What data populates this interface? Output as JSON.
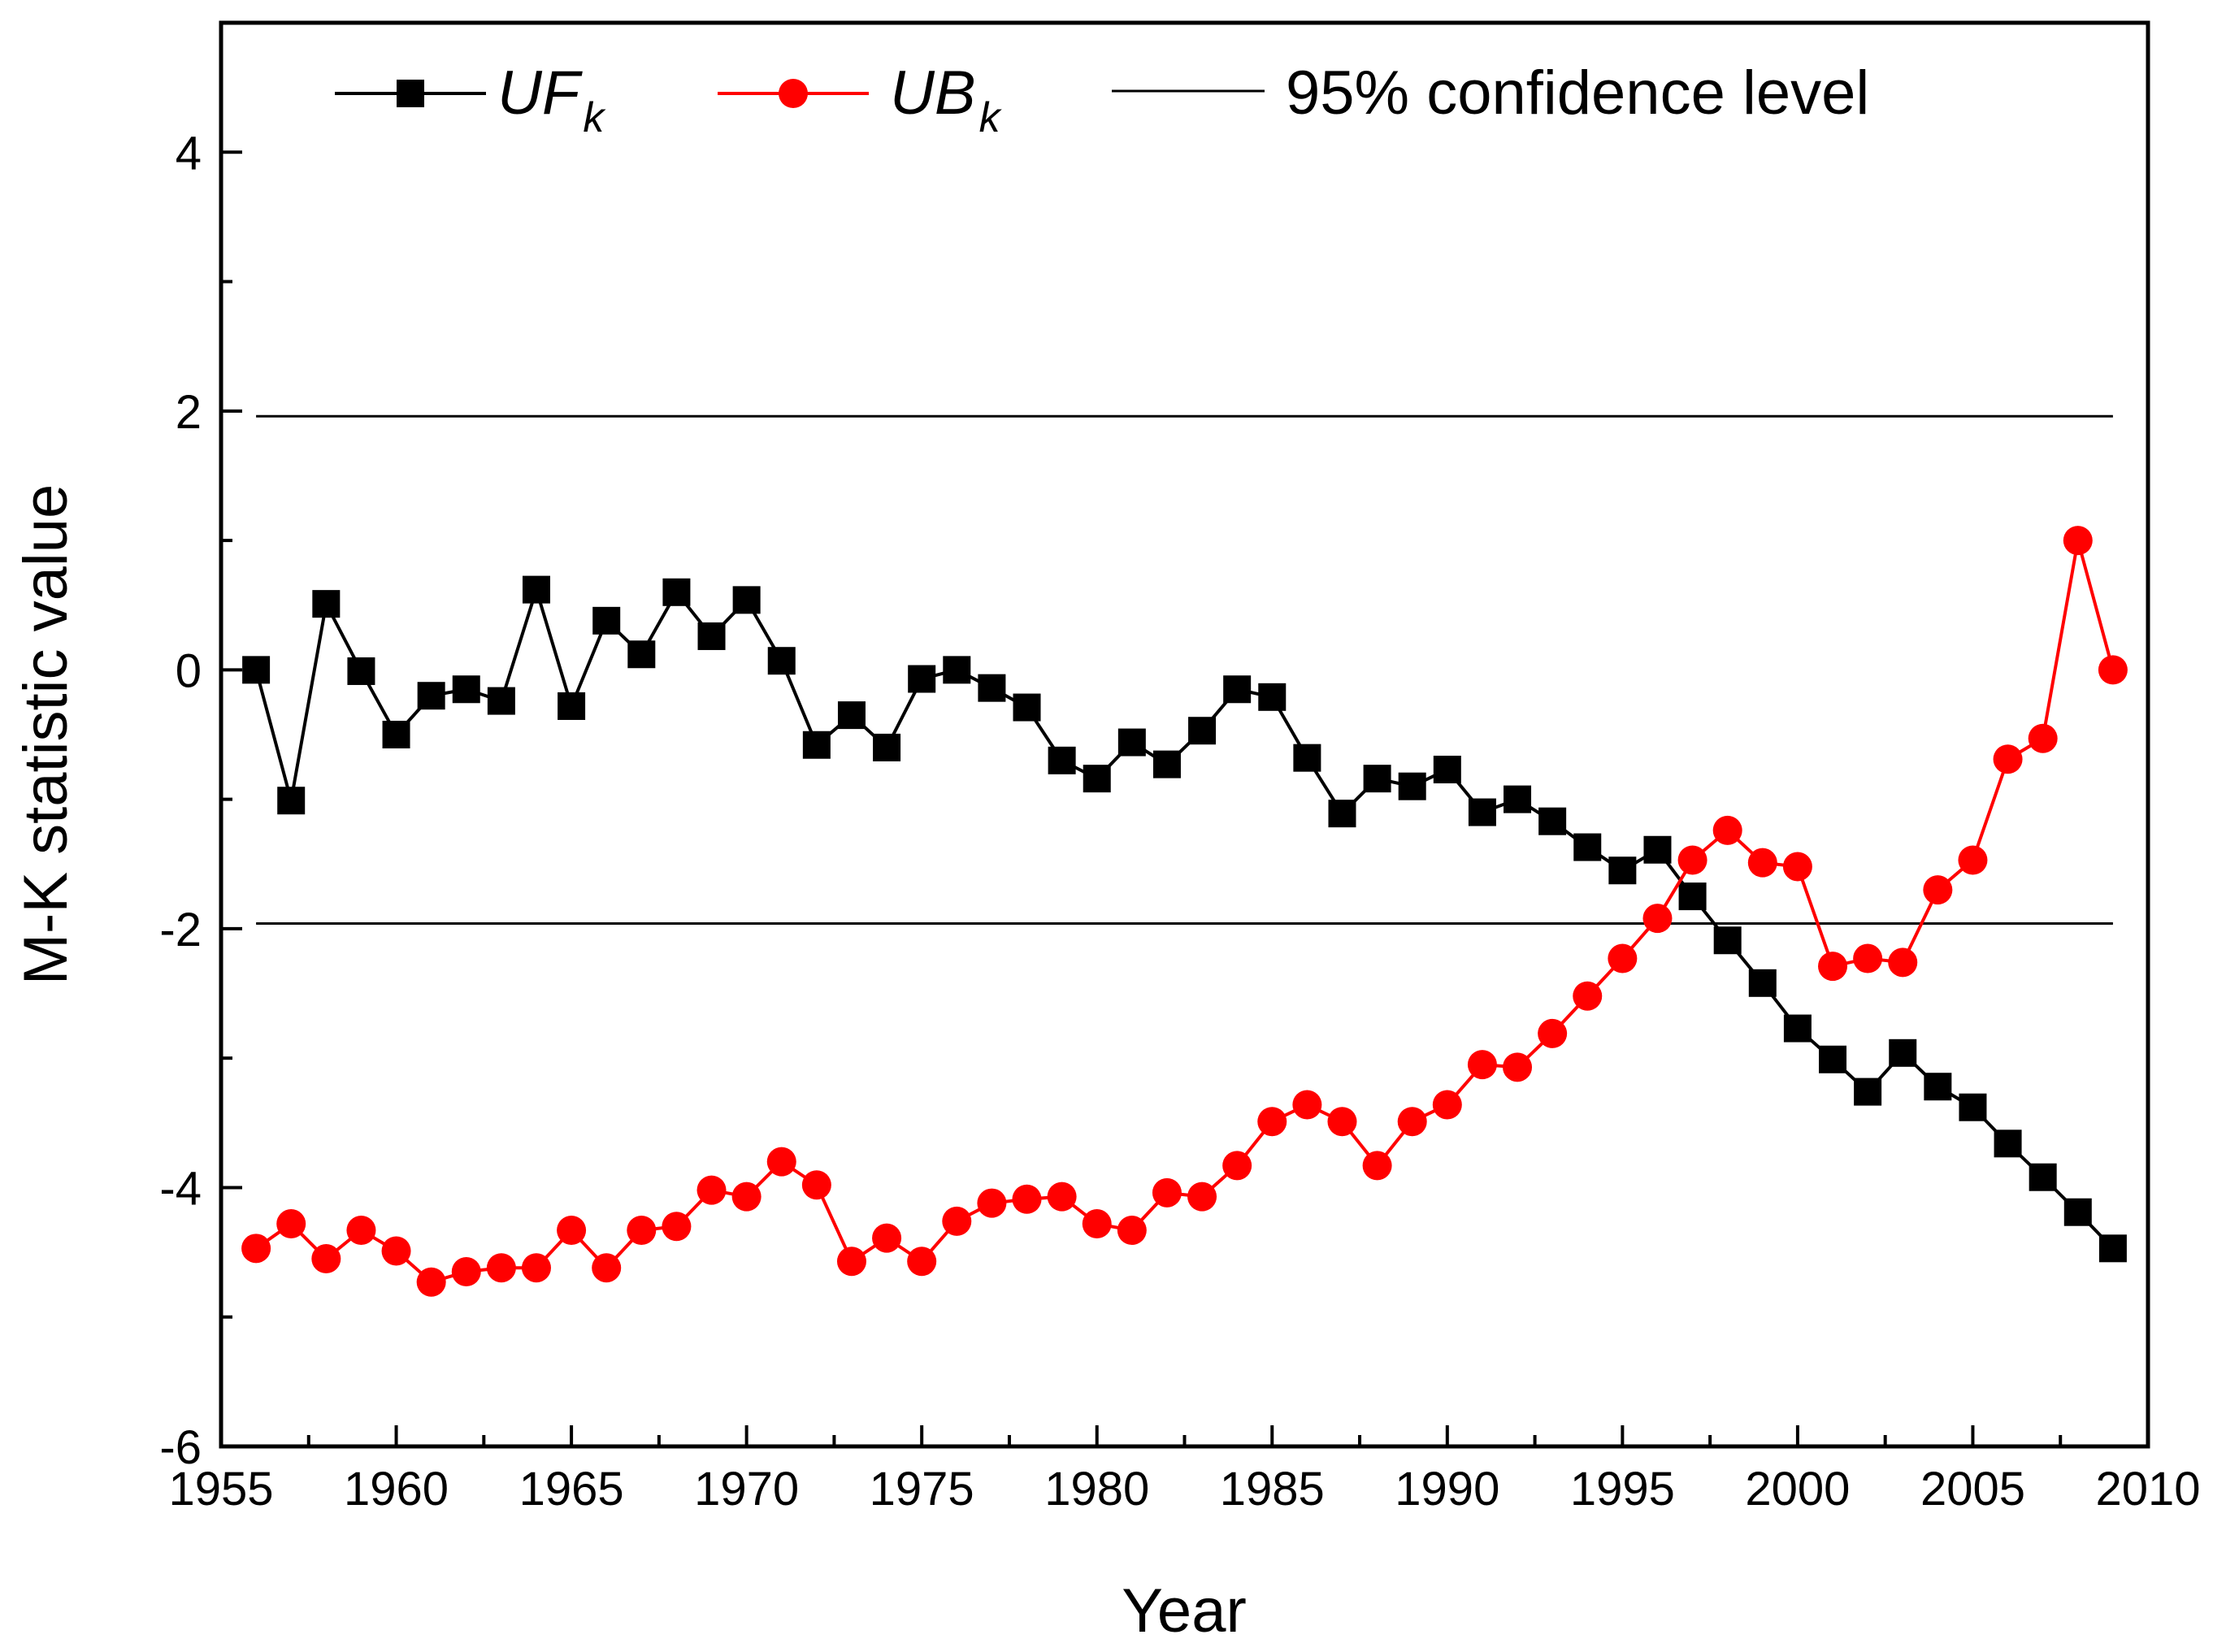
{
  "chart_data": {
    "type": "line",
    "title": "",
    "xlabel": "Year",
    "ylabel": "M-K statistic value",
    "xlim": [
      1955,
      2010
    ],
    "ylim": [
      -6,
      5
    ],
    "xticks": [
      1955,
      1960,
      1965,
      1970,
      1975,
      1980,
      1985,
      1990,
      1995,
      2000,
      2005,
      2010
    ],
    "yticks": [
      -6,
      -4,
      -2,
      0,
      2,
      4
    ],
    "xtick_labels": [
      "1955",
      "1960",
      "1965",
      "1970",
      "1975",
      "1980",
      "1985",
      "1990",
      "1995",
      "2000",
      "2005",
      "2010"
    ],
    "ytick_labels": [
      "-6",
      "-4",
      "-2",
      "0",
      "2",
      "4"
    ],
    "grid": false,
    "legend_position": "top",
    "x": [
      1956,
      1957,
      1958,
      1959,
      1960,
      1961,
      1962,
      1963,
      1964,
      1965,
      1966,
      1967,
      1968,
      1969,
      1970,
      1971,
      1972,
      1973,
      1974,
      1975,
      1976,
      1977,
      1978,
      1979,
      1980,
      1981,
      1982,
      1983,
      1984,
      1985,
      1986,
      1987,
      1988,
      1989,
      1990,
      1991,
      1992,
      1993,
      1994,
      1995,
      1996,
      1997,
      1998,
      1999,
      2000,
      2001,
      2002,
      2003,
      2004,
      2005,
      2006,
      2007,
      2008,
      2009
    ],
    "series": [
      {
        "name_main": "UF",
        "name_sub": "k",
        "color": "#000000",
        "marker": "square",
        "values": [
          0.0,
          -1.01,
          0.51,
          -0.01,
          -0.5,
          -0.2,
          -0.15,
          -0.24,
          0.62,
          -0.28,
          0.38,
          0.12,
          0.6,
          0.26,
          0.54,
          0.07,
          -0.58,
          -0.35,
          -0.6,
          -0.07,
          0.0,
          -0.14,
          -0.29,
          -0.7,
          -0.84,
          -0.56,
          -0.73,
          -0.47,
          -0.15,
          -0.21,
          -0.68,
          -1.11,
          -0.84,
          -0.9,
          -0.77,
          -1.1,
          -1.0,
          -1.17,
          -1.37,
          -1.55,
          -1.39,
          -1.75,
          -2.09,
          -2.42,
          -2.77,
          -3.01,
          -3.26,
          -2.96,
          -3.22,
          -3.38,
          -3.66,
          -3.92,
          -4.19,
          -4.47
        ]
      },
      {
        "name_main": "UB",
        "name_sub": "k",
        "color": "#ff0000",
        "marker": "circle",
        "values": [
          -4.47,
          -4.28,
          -4.55,
          -4.33,
          -4.49,
          -4.73,
          -4.65,
          -4.62,
          -4.62,
          -4.33,
          -4.62,
          -4.33,
          -4.3,
          -4.02,
          -4.07,
          -3.8,
          -3.98,
          -4.57,
          -4.39,
          -4.57,
          -4.26,
          -4.12,
          -4.09,
          -4.07,
          -4.28,
          -4.33,
          -4.04,
          -4.07,
          -3.83,
          -3.49,
          -3.36,
          -3.49,
          -3.83,
          -3.49,
          -3.36,
          -3.05,
          -3.07,
          -2.81,
          -2.52,
          -2.23,
          -1.92,
          -1.47,
          -1.24,
          -1.49,
          -1.52,
          -2.29,
          -2.23,
          -2.26,
          -1.7,
          -1.47,
          -0.69,
          -0.53,
          1.0,
          0.0
        ]
      }
    ],
    "reference_lines": {
      "label": "95% confidence level",
      "values": [
        1.96,
        -1.96
      ],
      "x_start": 1956,
      "x_end": 2009,
      "color": "#000000"
    }
  }
}
